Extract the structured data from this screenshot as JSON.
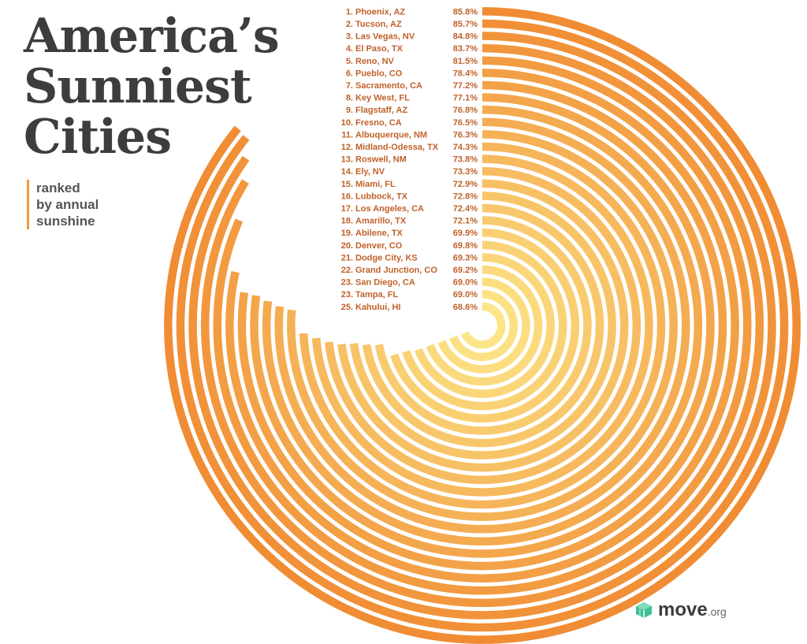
{
  "title_lines": [
    "America’s",
    "Sunniest",
    "Cities"
  ],
  "subtitle_lines": [
    "ranked",
    "by annual",
    "sunshine"
  ],
  "logo": {
    "name": "move",
    "suffix": ".org"
  },
  "colors": {
    "outer": "#f08c33",
    "inner": "#fde587",
    "text": "#c0612a",
    "title": "#3d3d3d",
    "logo_accent": "#3fbf96"
  },
  "chart_data": {
    "type": "radial-bar",
    "title": "America’s Sunniest Cities",
    "subtitle": "ranked by annual sunshine",
    "rows": [
      {
        "rank": "1.",
        "city": "Phoenix, AZ",
        "value": 85.8,
        "label": "85.8%"
      },
      {
        "rank": "2.",
        "city": "Tucson, AZ",
        "value": 85.7,
        "label": "85.7%"
      },
      {
        "rank": "3.",
        "city": "Las Vegas, NV",
        "value": 84.8,
        "label": "84.8%"
      },
      {
        "rank": "4.",
        "city": "El Paso, TX",
        "value": 83.7,
        "label": "83.7%"
      },
      {
        "rank": "5.",
        "city": "Reno, NV",
        "value": 81.5,
        "label": "81.5%"
      },
      {
        "rank": "6.",
        "city": "Pueblo, CO",
        "value": 78.4,
        "label": "78.4%"
      },
      {
        "rank": "7.",
        "city": "Sacramento, CA",
        "value": 77.2,
        "label": "77.2%"
      },
      {
        "rank": "8.",
        "city": "Key West, FL",
        "value": 77.1,
        "label": "77.1%"
      },
      {
        "rank": "9.",
        "city": "Flagstaff, AZ",
        "value": 76.8,
        "label": "76.8%"
      },
      {
        "rank": "10.",
        "city": "Fresno, CA",
        "value": 76.5,
        "label": "76.5%"
      },
      {
        "rank": "11.",
        "city": "Albuquerque, NM",
        "value": 76.3,
        "label": "76.3%"
      },
      {
        "rank": "12.",
        "city": "Midland-Odessa, TX",
        "value": 74.3,
        "label": "74.3%"
      },
      {
        "rank": "13.",
        "city": "Roswell, NM",
        "value": 73.8,
        "label": "73.8%"
      },
      {
        "rank": "14.",
        "city": "Ely, NV",
        "value": 73.3,
        "label": "73.3%"
      },
      {
        "rank": "15.",
        "city": "Miami, FL",
        "value": 72.9,
        "label": "72.9%"
      },
      {
        "rank": "16.",
        "city": "Lubbock, TX",
        "value": 72.8,
        "label": "72.8%"
      },
      {
        "rank": "17.",
        "city": "Los Angeles, CA",
        "value": 72.4,
        "label": "72.4%"
      },
      {
        "rank": "18.",
        "city": "Amarillo, TX",
        "value": 72.1,
        "label": "72.1%"
      },
      {
        "rank": "19.",
        "city": "Abilene, TX",
        "value": 69.9,
        "label": "69.9%"
      },
      {
        "rank": "20.",
        "city": "Denver, CO",
        "value": 69.8,
        "label": "69.8%"
      },
      {
        "rank": "21.",
        "city": "Dodge City, KS",
        "value": 69.3,
        "label": "69.3%"
      },
      {
        "rank": "22.",
        "city": "Grand Junction, CO",
        "value": 69.2,
        "label": "69.2%"
      },
      {
        "rank": "23.",
        "city": "San Diego, CA",
        "value": 69.0,
        "label": "69.0%"
      },
      {
        "rank": "23.",
        "city": "Tampa, FL",
        "value": 69.0,
        "label": "69.0%"
      },
      {
        "rank": "25.",
        "city": "Kahului, HI",
        "value": 68.6,
        "label": "68.6%"
      }
    ]
  }
}
